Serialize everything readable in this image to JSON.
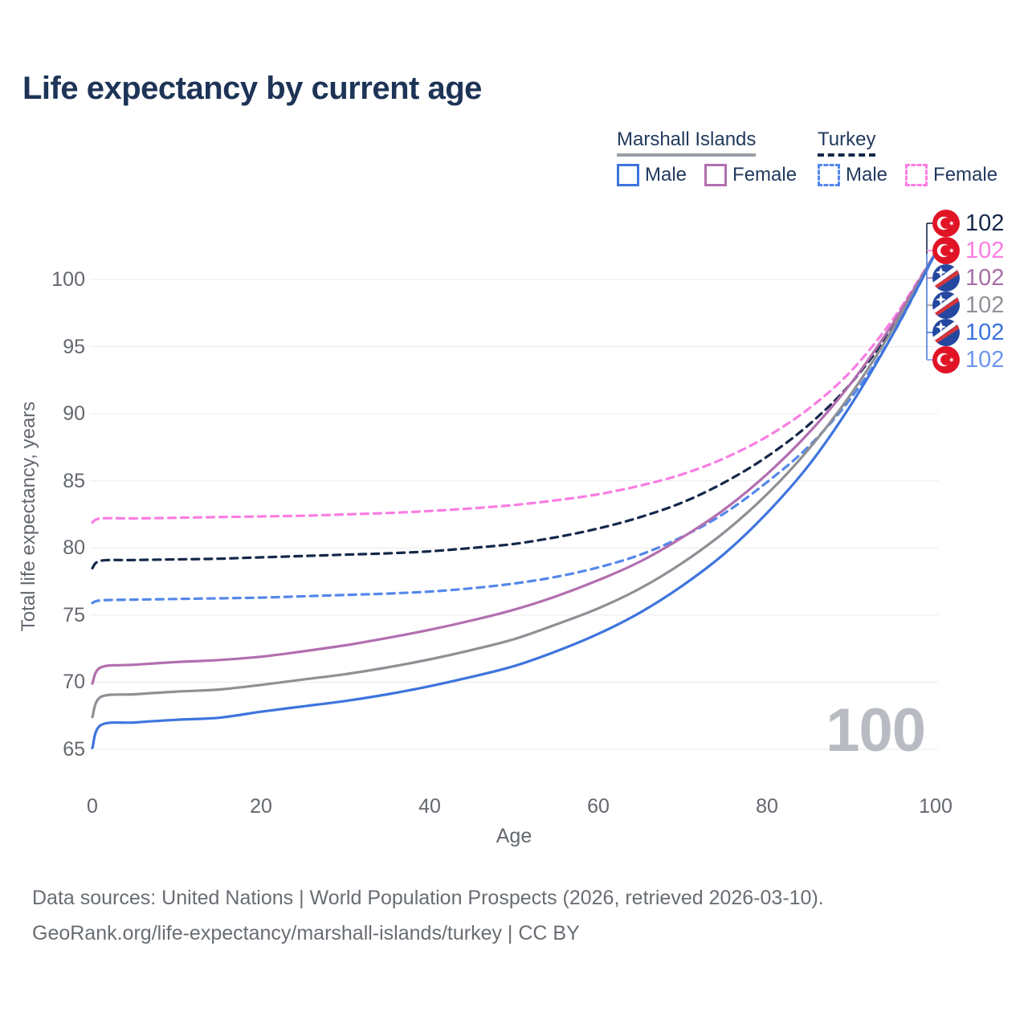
{
  "title": "Life expectancy by current age",
  "watermark": "100",
  "colors": {
    "title_text": "#1d3457",
    "legend_text": "#223a5e",
    "axis_text": "#63676e",
    "grid": "#e9eaec",
    "watermark": "#b8bcc2",
    "footer_text": "#686d73",
    "leader_top": "#16294a",
    "leader_bottom": "#4b7ce0"
  },
  "legend": {
    "groups": [
      {
        "name": "Marshall Islands",
        "underline_style": "solid",
        "underline_color": "#9aa0a6",
        "entries": [
          {
            "label": "Male",
            "color": "#3e74de",
            "dashed": false
          },
          {
            "label": "Female",
            "color": "#b26fb0",
            "dashed": false
          }
        ]
      },
      {
        "name": "Turkey",
        "underline_style": "dashed",
        "underline_color": "#14284a",
        "entries": [
          {
            "label": "Male",
            "color": "#5488ea",
            "dashed": true
          },
          {
            "label": "Female",
            "color": "#fa7de2",
            "dashed": true
          }
        ]
      }
    ]
  },
  "chart_data": {
    "type": "line",
    "title": "Life expectancy by current age",
    "xlabel": "Age",
    "ylabel": "Total life expectancy, years",
    "xlim": [
      0,
      100
    ],
    "ylim": [
      63.5,
      103
    ],
    "x_ticks": [
      0,
      20,
      40,
      60,
      80,
      100
    ],
    "y_ticks": [
      65,
      70,
      75,
      80,
      85,
      90,
      95,
      100
    ],
    "grid": "horizontal",
    "legend_position": "top-right",
    "x": [
      0,
      1,
      5,
      10,
      15,
      20,
      25,
      30,
      35,
      40,
      45,
      50,
      55,
      60,
      65,
      70,
      75,
      80,
      85,
      90,
      95,
      100
    ],
    "series": [
      {
        "name": "Turkey Female",
        "country": "Turkey",
        "sex": "Female",
        "flag": "turkey",
        "color": "#fa7de2",
        "dashed": true,
        "label_color": "#fc7ce0",
        "end_label": "102",
        "values": [
          81.9,
          82.2,
          82.2,
          82.25,
          82.3,
          82.35,
          82.4,
          82.5,
          82.6,
          82.75,
          82.95,
          83.2,
          83.55,
          84.0,
          84.65,
          85.5,
          86.7,
          88.3,
          90.4,
          93.2,
          97.1,
          102
        ]
      },
      {
        "name": "Turkey Both sexes",
        "country": "Turkey",
        "sex": "Both sexes",
        "flag": "turkey",
        "color": "#14284a",
        "dashed": true,
        "label_color": "#16294a",
        "end_label": "102",
        "values": [
          78.5,
          79.05,
          79.1,
          79.15,
          79.2,
          79.3,
          79.4,
          79.5,
          79.6,
          79.75,
          80.0,
          80.3,
          80.8,
          81.45,
          82.3,
          83.4,
          84.9,
          86.8,
          89.2,
          92.3,
          96.5,
          102
        ]
      },
      {
        "name": "Turkey Male",
        "country": "Turkey",
        "sex": "Male",
        "flag": "turkey",
        "color": "#5488ea",
        "dashed": true,
        "label_color": "#6d96f0",
        "end_label": "102",
        "values": [
          75.9,
          76.1,
          76.15,
          76.2,
          76.25,
          76.3,
          76.4,
          76.5,
          76.6,
          76.75,
          77.0,
          77.35,
          77.85,
          78.55,
          79.5,
          80.85,
          82.6,
          84.9,
          87.6,
          91.2,
          96.0,
          102
        ]
      },
      {
        "name": "Marshall Islands Female",
        "country": "Marshall Islands",
        "sex": "Female",
        "flag": "marshall-islands",
        "color": "#b26fb0",
        "dashed": false,
        "label_color": "#a76fa6",
        "end_label": "102",
        "values": [
          69.9,
          71.1,
          71.3,
          71.5,
          71.65,
          71.9,
          72.3,
          72.75,
          73.3,
          73.9,
          74.6,
          75.4,
          76.4,
          77.6,
          79.0,
          80.8,
          82.9,
          85.5,
          88.6,
          92.3,
          96.8,
          102
        ]
      },
      {
        "name": "Marshall Islands Both sexes",
        "country": "Marshall Islands",
        "sex": "Both sexes",
        "flag": "marshall-islands",
        "color": "#8e9095",
        "dashed": false,
        "label_color": "#909298",
        "end_label": "102",
        "values": [
          67.4,
          68.9,
          69.1,
          69.3,
          69.45,
          69.8,
          70.2,
          70.6,
          71.1,
          71.7,
          72.4,
          73.2,
          74.3,
          75.5,
          77.0,
          78.9,
          81.2,
          84.0,
          87.4,
          91.5,
          96.4,
          102
        ]
      },
      {
        "name": "Marshall Islands Male",
        "country": "Marshall Islands",
        "sex": "Male",
        "flag": "marshall-islands",
        "color": "#3e74de",
        "dashed": false,
        "label_color": "#3c73dd",
        "end_label": "102",
        "values": [
          65.1,
          66.8,
          67.0,
          67.2,
          67.35,
          67.8,
          68.2,
          68.6,
          69.1,
          69.7,
          70.4,
          71.2,
          72.3,
          73.6,
          75.2,
          77.2,
          79.6,
          82.6,
          86.2,
          90.7,
          96.0,
          102
        ]
      }
    ]
  },
  "right_labels": [
    {
      "series": "Turkey Both sexes",
      "flag": "turkey",
      "value": "102",
      "color": "#16294a"
    },
    {
      "series": "Turkey Female",
      "flag": "turkey",
      "value": "102",
      "color": "#fc7ce0"
    },
    {
      "series": "Marshall Islands Female",
      "flag": "marshall-islands",
      "value": "102",
      "color": "#a76fa6"
    },
    {
      "series": "Marshall Islands Both sexes",
      "flag": "marshall-islands",
      "value": "102",
      "color": "#909298"
    },
    {
      "series": "Marshall Islands Male",
      "flag": "marshall-islands",
      "value": "102",
      "color": "#3c73dd"
    },
    {
      "series": "Turkey Male",
      "flag": "turkey",
      "value": "102",
      "color": "#6d96f0"
    }
  ],
  "axes": {
    "x_label": "Age",
    "y_label": "Total life expectancy, years"
  },
  "footer": {
    "line1": "Data sources: United Nations | World Population Prospects (2026, retrieved 2026-03-10).",
    "line2": "GeoRank.org/life-expectancy/marshall-islands/turkey | CC BY"
  }
}
